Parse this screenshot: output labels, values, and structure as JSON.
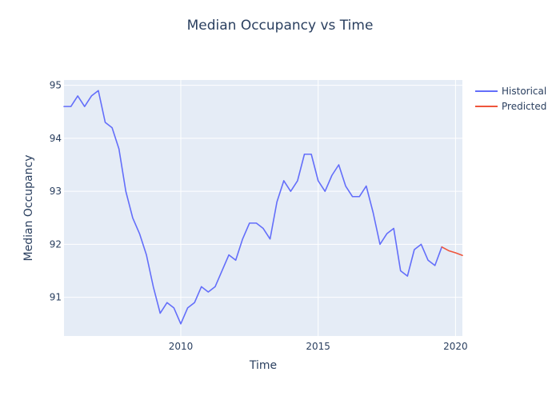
{
  "chart_data": {
    "type": "line",
    "title": "Median Occupancy vs Time",
    "xlabel": "Time",
    "ylabel": "Median Occupancy",
    "xlim": [
      2005.75,
      2020.25
    ],
    "ylim": [
      90.27,
      95.1
    ],
    "x_ticks": [
      2010,
      2015,
      2020
    ],
    "x_tick_labels": [
      "2010",
      "2015",
      "2020"
    ],
    "y_ticks": [
      91,
      92,
      93,
      94,
      95
    ],
    "y_tick_labels": [
      "91",
      "92",
      "93",
      "94",
      "95"
    ],
    "grid": true,
    "legend_placement": "top-right, outside plot",
    "colors": {
      "plot_background": "#e5ecf6",
      "grid": "#ffffff",
      "text": "#2a3f5f"
    },
    "series": [
      {
        "name": "Historical",
        "color": "#636efa",
        "x": [
          2005.75,
          2006.0,
          2006.25,
          2006.5,
          2006.75,
          2007.0,
          2007.25,
          2007.5,
          2007.75,
          2008.0,
          2008.25,
          2008.5,
          2008.75,
          2009.0,
          2009.25,
          2009.5,
          2009.75,
          2010.0,
          2010.25,
          2010.5,
          2010.75,
          2011.0,
          2011.25,
          2011.5,
          2011.75,
          2012.0,
          2012.25,
          2012.5,
          2012.75,
          2013.0,
          2013.25,
          2013.5,
          2013.75,
          2014.0,
          2014.25,
          2014.5,
          2014.75,
          2015.0,
          2015.25,
          2015.5,
          2015.75,
          2016.0,
          2016.25,
          2016.5,
          2016.75,
          2017.0,
          2017.25,
          2017.5,
          2017.75,
          2018.0,
          2018.25,
          2018.5,
          2018.75,
          2019.0,
          2019.25,
          2019.5
        ],
        "y": [
          94.6,
          94.6,
          94.8,
          94.6,
          94.8,
          94.9,
          94.3,
          94.2,
          93.8,
          93.0,
          92.5,
          92.2,
          91.8,
          91.2,
          90.7,
          90.9,
          90.8,
          90.5,
          90.8,
          90.9,
          91.2,
          91.1,
          91.2,
          91.5,
          91.8,
          91.7,
          92.1,
          92.4,
          92.4,
          92.3,
          92.1,
          92.8,
          93.2,
          93.0,
          93.2,
          93.7,
          93.7,
          93.2,
          93.0,
          93.3,
          93.5,
          93.1,
          92.9,
          92.9,
          93.1,
          92.6,
          92.0,
          92.2,
          92.3,
          91.5,
          91.4,
          91.9,
          92.0,
          91.7,
          91.6,
          91.95
        ]
      },
      {
        "name": "Predicted",
        "color": "#ef553b",
        "x": [
          2019.5,
          2019.75,
          2020.0,
          2020.25
        ],
        "y": [
          91.95,
          91.88,
          91.84,
          91.79
        ]
      }
    ]
  }
}
